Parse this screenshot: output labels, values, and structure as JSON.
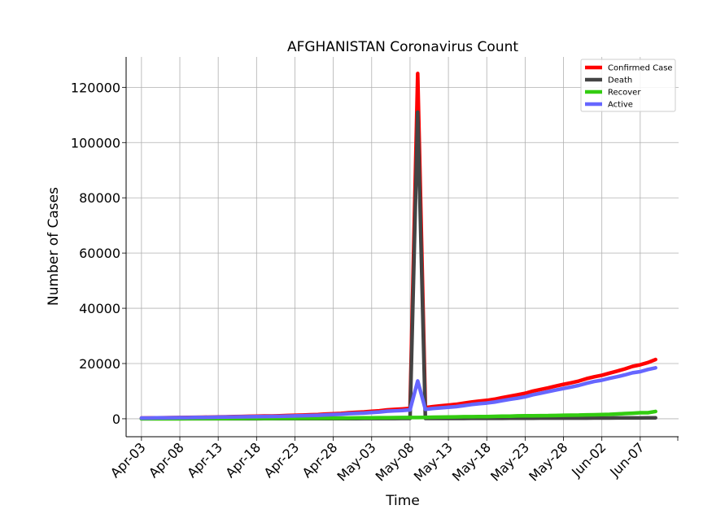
{
  "chart_data": {
    "type": "line",
    "title": "AFGHANISTAN Coronavirus Count",
    "xlabel": "Time",
    "ylabel": "Number of Cases",
    "x_start": "2020-04-03",
    "x_end": "2020-06-08",
    "xlim": [
      "2020-04-01",
      "2020-06-12"
    ],
    "ylim": [
      -6500,
      131000
    ],
    "grid": true,
    "legend_position": "top-right",
    "y_ticks": [
      0,
      20000,
      40000,
      60000,
      80000,
      100000,
      120000
    ],
    "x_ticks": [
      {
        "date": "2020-04-03",
        "label": "Apr-03"
      },
      {
        "date": "2020-04-08",
        "label": "Apr-08"
      },
      {
        "date": "2020-04-13",
        "label": "Apr-13"
      },
      {
        "date": "2020-04-18",
        "label": "Apr-18"
      },
      {
        "date": "2020-04-23",
        "label": "Apr-23"
      },
      {
        "date": "2020-04-28",
        "label": "Apr-28"
      },
      {
        "date": "2020-05-03",
        "label": "May-03"
      },
      {
        "date": "2020-05-08",
        "label": "May-08"
      },
      {
        "date": "2020-05-13",
        "label": "May-13"
      },
      {
        "date": "2020-05-18",
        "label": "May-18"
      },
      {
        "date": "2020-05-23",
        "label": "May-23"
      },
      {
        "date": "2020-05-28",
        "label": "May-28"
      },
      {
        "date": "2020-06-02",
        "label": "Jun-02"
      },
      {
        "date": "2020-06-07",
        "label": "Jun-07"
      }
    ],
    "series": [
      {
        "name": "Confirmed Case",
        "color": "#ff0000",
        "values": [
          281,
          299,
          349,
          367,
          423,
          444,
          484,
          521,
          555,
          607,
          665,
          714,
          784,
          840,
          906,
          933,
          996,
          1026,
          1092,
          1176,
          1279,
          1351,
          1463,
          1531,
          1703,
          1828,
          1939,
          2171,
          2335,
          2469,
          2704,
          2894,
          3224,
          3392,
          3563,
          3778,
          125000,
          4033,
          4402,
          4687,
          4963,
          5226,
          5639,
          6053,
          6402,
          6664,
          7072,
          7653,
          8145,
          8676,
          9216,
          9998,
          10582,
          11173,
          11831,
          12456,
          13036,
          13659,
          14525,
          15205,
          15750,
          16509,
          17267,
          18054,
          18969,
          19551,
          20342,
          21459
        ]
      },
      {
        "name": "Death",
        "color": "#444444",
        "values": [
          6,
          7,
          7,
          11,
          14,
          14,
          15,
          15,
          18,
          18,
          21,
          23,
          25,
          27,
          30,
          30,
          33,
          36,
          36,
          40,
          42,
          43,
          47,
          50,
          57,
          58,
          60,
          64,
          68,
          72,
          85,
          90,
          95,
          104,
          106,
          109,
          111000,
          115,
          120,
          122,
          127,
          132,
          136,
          153,
          168,
          169,
          173,
          178,
          187,
          193,
          205,
          216,
          218,
          219,
          220,
          227,
          235,
          246,
          249,
          257,
          265,
          270,
          294,
          300,
          309,
          321,
          327,
          357
        ]
      },
      {
        "name": "Recover",
        "color": "#33cc11",
        "values": [
          10,
          10,
          10,
          18,
          29,
          29,
          32,
          32,
          40,
          43,
          54,
          68,
          84,
          99,
          112,
          112,
          131,
          135,
          150,
          166,
          179,
          188,
          207,
          211,
          220,
          228,
          252,
          260,
          310,
          331,
          345,
          372,
          397,
          421,
          458,
          468,
          472,
          502,
          558,
          610,
          648,
          691,
          745,
          745,
          778,
          801,
          850,
          930,
          938,
          1040,
          1075,
          1097,
          1128,
          1138,
          1209,
          1259,
          1303,
          1328,
          1428,
          1450,
          1522,
          1585,
          1749,
          1875,
          2010,
          2171,
          2181,
          2651
        ]
      },
      {
        "name": "Active",
        "color": "#6666ff",
        "values": [
          265,
          282,
          332,
          338,
          380,
          401,
          437,
          474,
          497,
          546,
          590,
          623,
          675,
          714,
          764,
          791,
          832,
          855,
          906,
          970,
          1058,
          1120,
          1209,
          1270,
          1426,
          1542,
          1627,
          1847,
          1957,
          2066,
          2274,
          2432,
          2732,
          2867,
          2999,
          3201,
          13700,
          3416,
          3724,
          3955,
          4188,
          4403,
          4758,
          5155,
          5456,
          5694,
          6049,
          6545,
          7020,
          7443,
          7936,
          8685,
          9236,
          9816,
          10402,
          10970,
          11498,
          12085,
          12848,
          13498,
          13963,
          14654,
          15224,
          15879,
          16650,
          17059,
          17834,
          18451
        ]
      }
    ]
  }
}
